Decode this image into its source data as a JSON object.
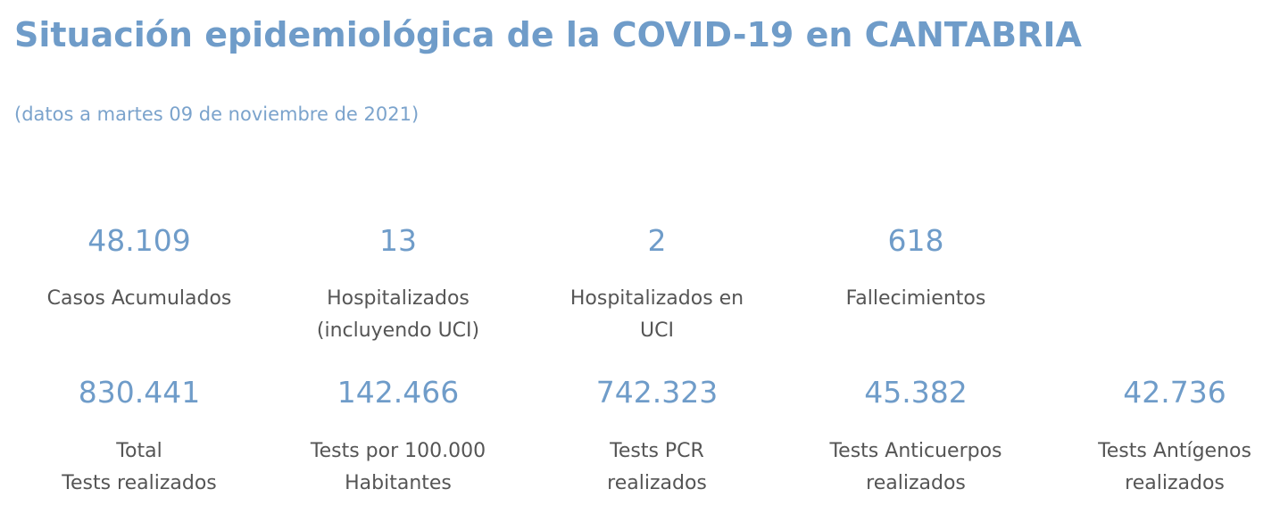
{
  "page": {
    "title": "Situación epidemiológica de la COVID-19 en CANTABRIA",
    "subtitle": "(datos a martes 09 de noviembre de 2021)"
  },
  "stats_row1": [
    {
      "value": "48.109",
      "label": [
        "Casos Acumulados"
      ]
    },
    {
      "value": "13",
      "label": [
        "Hospitalizados",
        "(incluyendo UCI)"
      ]
    },
    {
      "value": "2",
      "label": [
        "Hospitalizados en",
        "UCI"
      ]
    },
    {
      "value": "618",
      "label": [
        "Fallecimientos"
      ]
    }
  ],
  "stats_row2": [
    {
      "value": "830.441",
      "label": [
        "Total",
        "Tests realizados"
      ]
    },
    {
      "value": "142.466",
      "label": [
        "Tests por 100.000",
        "Habitantes"
      ]
    },
    {
      "value": "742.323",
      "label": [
        " Tests PCR",
        "realizados"
      ]
    },
    {
      "value": "45.382",
      "label": [
        "Tests Anticuerpos",
        "realizados"
      ]
    },
    {
      "value": "42.736",
      "label": [
        "Tests Antígenos",
        "realizados"
      ]
    }
  ]
}
